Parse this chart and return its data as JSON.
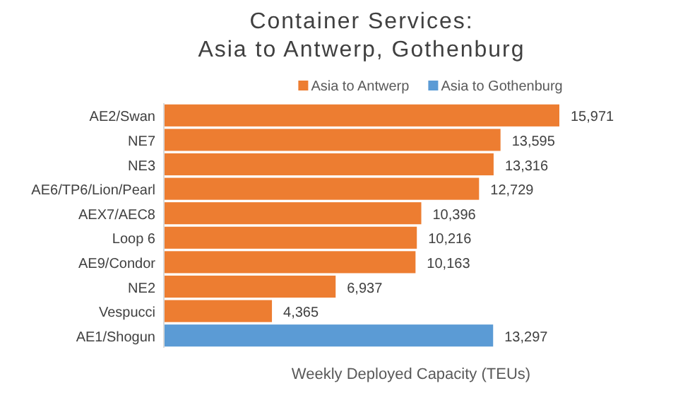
{
  "chart_data": {
    "type": "bar",
    "orientation": "horizontal",
    "title": "Container Services:\nAsia to Antwerp, Gothenburg",
    "xlabel": "Weekly Deployed Capacity (TEUs)",
    "categories": [
      "AE2/Swan",
      "NE7",
      "NE3",
      "AE6/TP6/Lion/Pearl",
      "AEX7/AEC8",
      "Loop 6",
      "AE9/Condor",
      "NE2",
      "Vespucci",
      "AE1/Shogun"
    ],
    "series": [
      {
        "name": "Asia to Antwerp",
        "color": "#ed7d31",
        "values": [
          15971,
          13595,
          13316,
          12729,
          10396,
          10216,
          10163,
          6937,
          4365,
          null
        ],
        "value_labels": [
          "15,971",
          "13,595",
          "13,316",
          "12,729",
          "10,396",
          "10,216",
          "10,163",
          "6,937",
          "4,365",
          null
        ]
      },
      {
        "name": "Asia to Gothenburg",
        "color": "#5b9bd5",
        "values": [
          null,
          null,
          null,
          null,
          null,
          null,
          null,
          null,
          null,
          13297
        ],
        "value_labels": [
          null,
          null,
          null,
          null,
          null,
          null,
          null,
          null,
          null,
          "13,297"
        ]
      }
    ],
    "tick_labels": "y",
    "legend": "top"
  }
}
